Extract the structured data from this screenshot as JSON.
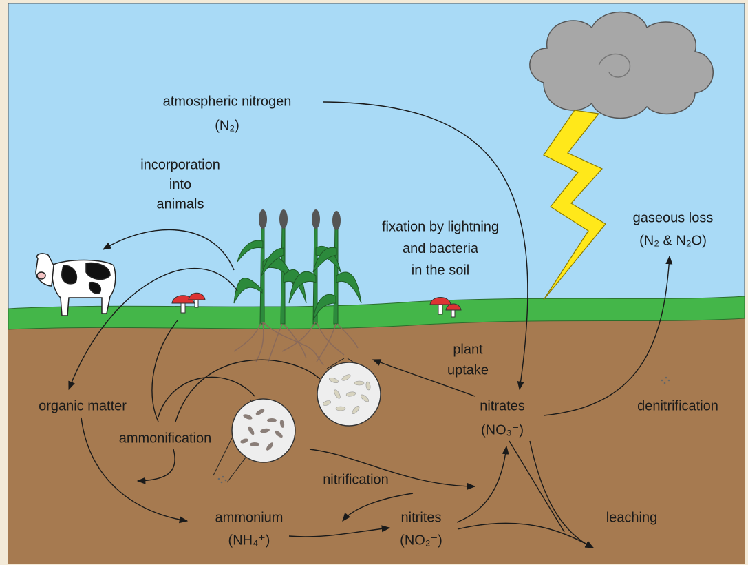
{
  "labels": [
    {
      "lines": [
        "atmospheric nitrogen",
        "(N₂)"
      ]
    },
    {
      "lines": [
        "incorporation",
        "into",
        "animals"
      ]
    },
    {
      "lines": [
        "fixation by lightning",
        "and bacteria",
        "in the soil"
      ]
    },
    {
      "lines": [
        "gaseous loss",
        "(N₂ & N₂O)"
      ]
    },
    {
      "lines": [
        "plant",
        "uptake"
      ]
    },
    {
      "lines": [
        "organic matter"
      ]
    },
    {
      "lines": [
        "ammonification"
      ]
    },
    {
      "lines": [
        "nitrates",
        "(NO₃⁻)"
      ]
    },
    {
      "lines": [
        "denitrification"
      ]
    },
    {
      "lines": [
        "nitrification"
      ]
    },
    {
      "lines": [
        "ammonium",
        "(NH₄⁺)"
      ]
    },
    {
      "lines": [
        "nitrites",
        "(NO₂⁻)"
      ]
    },
    {
      "lines": [
        "leaching"
      ]
    }
  ]
}
